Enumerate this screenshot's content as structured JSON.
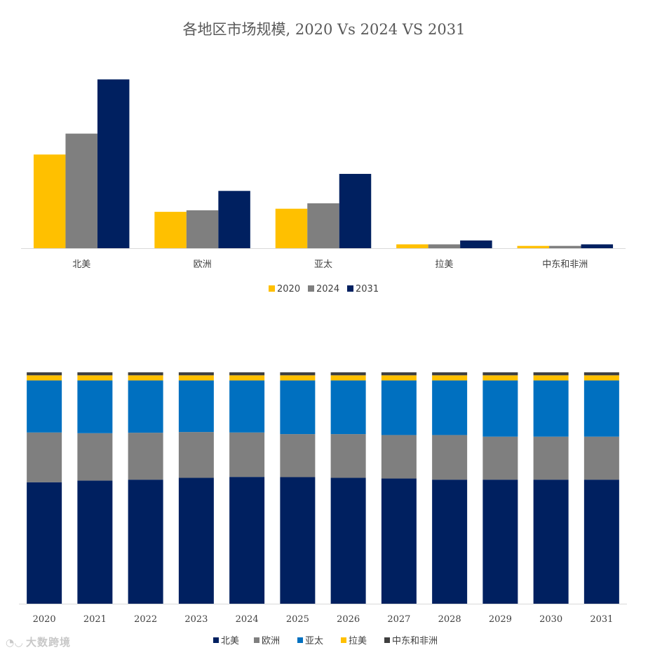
{
  "chart_data": [
    {
      "type": "bar",
      "title": "各地区市场规模, 2020 Vs 2024 VS 2031",
      "categories": [
        "北美",
        "欧洲",
        "亚太",
        "拉美",
        "中东和非洲"
      ],
      "series": [
        {
          "name": "2020",
          "color": "#FFC000",
          "values": [
            121,
            47,
            51,
            5,
            3
          ]
        },
        {
          "name": "2024",
          "color": "#7F7F7F",
          "values": [
            148,
            49,
            58,
            5,
            3
          ]
        },
        {
          "name": "2031",
          "color": "#002060",
          "values": [
            218,
            74,
            96,
            10,
            5
          ]
        }
      ],
      "ylim": [
        0,
        230
      ],
      "xlabel": "",
      "ylabel": "",
      "legend": "bottom"
    },
    {
      "type": "bar",
      "stacked": "percent",
      "categories": [
        "2020",
        "2021",
        "2022",
        "2023",
        "2024",
        "2025",
        "2026",
        "2027",
        "2028",
        "2029",
        "2030",
        "2031"
      ],
      "series": [
        {
          "name": "北美",
          "color": "#002060",
          "values": [
            52.5,
            53.2,
            53.6,
            54.4,
            54.8,
            54.7,
            54.4,
            54.1,
            53.6,
            53.6,
            53.6,
            53.6
          ]
        },
        {
          "name": "欧洲",
          "color": "#7F7F7F",
          "values": [
            21.5,
            20.5,
            20.3,
            19.8,
            19.2,
            18.6,
            18.9,
            18.8,
            19.3,
            18.6,
            18.6,
            18.6
          ]
        },
        {
          "name": "亚太",
          "color": "#0070C0",
          "values": [
            22.5,
            22.8,
            22.6,
            22.3,
            22.5,
            23.2,
            23.2,
            23.6,
            23.6,
            24.3,
            24.3,
            24.3
          ]
        },
        {
          "name": "拉美",
          "color": "#FFC000",
          "values": [
            2.2,
            2.2,
            2.2,
            2.2,
            2.2,
            2.2,
            2.2,
            2.2,
            2.2,
            2.2,
            2.2,
            2.2
          ]
        },
        {
          "name": "中东和非洲",
          "color": "#404040",
          "values": [
            1.3,
            1.3,
            1.3,
            1.3,
            1.3,
            1.3,
            1.3,
            1.3,
            1.3,
            1.3,
            1.3,
            1.3
          ]
        }
      ],
      "ylim": [
        0,
        100
      ],
      "xlabel": "",
      "ylabel": "",
      "legend": "bottom"
    }
  ],
  "watermark": "大数跨境"
}
